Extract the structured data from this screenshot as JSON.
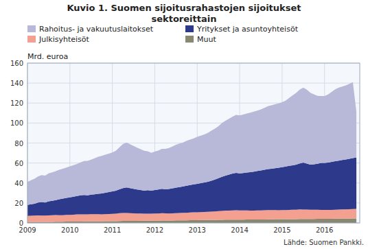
{
  "chart_data": {
    "type": "area",
    "stacked": true,
    "title": "Kuvio 1. Suomen sijoitusrahastojen sijoitukset\nsektoreittain",
    "ylabel": "Mrd. euroa",
    "source": "Lähde: Suomen Pankki.",
    "grid": true,
    "legend": "top",
    "xlim": [
      2009.0,
      2016.83
    ],
    "xticks": [
      2009,
      2010,
      2011,
      2012,
      2013,
      2014,
      2015,
      2016
    ],
    "ylim": [
      0,
      160
    ],
    "yticks": [
      0,
      20,
      40,
      60,
      80,
      100,
      120,
      140,
      160
    ],
    "x": [
      2009.0,
      2009.083,
      2009.167,
      2009.25,
      2009.333,
      2009.417,
      2009.5,
      2009.583,
      2009.667,
      2009.75,
      2009.833,
      2009.917,
      2010.0,
      2010.083,
      2010.167,
      2010.25,
      2010.333,
      2010.417,
      2010.5,
      2010.583,
      2010.667,
      2010.75,
      2010.833,
      2010.917,
      2011.0,
      2011.083,
      2011.167,
      2011.25,
      2011.333,
      2011.417,
      2011.5,
      2011.583,
      2011.667,
      2011.75,
      2011.833,
      2011.917,
      2012.0,
      2012.083,
      2012.167,
      2012.25,
      2012.333,
      2012.417,
      2012.5,
      2012.583,
      2012.667,
      2012.75,
      2012.833,
      2012.917,
      2013.0,
      2013.083,
      2013.167,
      2013.25,
      2013.333,
      2013.417,
      2013.5,
      2013.583,
      2013.667,
      2013.75,
      2013.833,
      2013.917,
      2014.0,
      2014.083,
      2014.167,
      2014.25,
      2014.333,
      2014.417,
      2014.5,
      2014.583,
      2014.667,
      2014.75,
      2014.833,
      2014.917,
      2015.0,
      2015.083,
      2015.167,
      2015.25,
      2015.333,
      2015.417,
      2015.5,
      2015.583,
      2015.667,
      2015.75,
      2015.833,
      2015.917,
      2016.0,
      2016.083,
      2016.167,
      2016.25,
      2016.333,
      2016.417,
      2016.5,
      2016.583,
      2016.667,
      2016.75
    ],
    "series": [
      {
        "name": "Rahoitus- ja vakuutuslaitokset",
        "color": "#b8b8d8",
        "values": [
          23.0,
          24.0,
          25.0,
          26.0,
          27.0,
          27.0,
          28.0,
          28.5,
          29.0,
          29.5,
          30.0,
          30.5,
          31.0,
          31.5,
          32.0,
          33.0,
          34.0,
          34.5,
          35.0,
          36.0,
          37.0,
          37.5,
          38.0,
          38.5,
          39.0,
          40.0,
          42.0,
          44.0,
          45.0,
          44.0,
          43.0,
          42.0,
          41.0,
          40.0,
          39.0,
          38.0,
          38.5,
          39.0,
          40.0,
          40.5,
          41.0,
          42.0,
          43.0,
          43.5,
          44.0,
          45.0,
          45.5,
          46.0,
          47.0,
          47.5,
          48.0,
          49.0,
          50.0,
          51.0,
          52.0,
          54.0,
          55.0,
          56.0,
          57.0,
          58.0,
          58.0,
          58.5,
          59.0,
          59.5,
          60.0,
          60.5,
          61.0,
          62.0,
          63.0,
          63.5,
          64.0,
          64.5,
          65.0,
          66.0,
          68.0,
          70.0,
          72.0,
          74.0,
          75.0,
          74.0,
          72.0,
          70.0,
          68.0,
          67.0,
          67.0,
          68.0,
          70.0,
          72.0,
          73.0,
          73.5,
          74.0,
          75.0,
          76.0,
          46.0
        ]
      },
      {
        "name": "Yritykset ja asuntoyhteisöt",
        "color": "#2d3a8c",
        "values": [
          11.0,
          11.5,
          12.0,
          13.0,
          13.5,
          13.0,
          14.0,
          14.5,
          15.0,
          16.0,
          16.5,
          17.0,
          17.5,
          18.0,
          18.5,
          19.0,
          19.5,
          19.0,
          19.5,
          20.0,
          20.5,
          21.0,
          21.5,
          22.0,
          22.5,
          23.0,
          24.0,
          25.0,
          25.5,
          25.0,
          24.5,
          24.0,
          23.5,
          23.0,
          23.5,
          23.0,
          23.5,
          24.0,
          24.5,
          24.0,
          24.5,
          25.0,
          25.5,
          26.0,
          26.5,
          27.0,
          27.5,
          28.0,
          28.5,
          29.0,
          29.5,
          30.0,
          31.0,
          32.0,
          33.0,
          34.0,
          35.0,
          36.0,
          37.0,
          37.5,
          37.0,
          37.5,
          38.0,
          38.5,
          39.0,
          39.5,
          40.0,
          40.5,
          41.0,
          41.5,
          42.0,
          42.5,
          43.0,
          43.5,
          44.0,
          44.5,
          45.0,
          46.0,
          47.0,
          46.0,
          45.0,
          45.5,
          46.0,
          47.0,
          47.0,
          47.5,
          48.0,
          48.5,
          49.0,
          49.5,
          50.0,
          50.5,
          51.0,
          51.5
        ]
      },
      {
        "name": "Julkisyhteisöt",
        "color": "#f4a090",
        "values": [
          6.0,
          6.2,
          6.3,
          6.5,
          6.4,
          6.3,
          6.5,
          6.6,
          6.7,
          6.5,
          6.6,
          6.7,
          6.8,
          7.0,
          7.1,
          7.2,
          7.0,
          7.1,
          7.3,
          7.2,
          7.1,
          7.0,
          7.1,
          7.2,
          7.3,
          7.5,
          7.8,
          7.9,
          8.0,
          7.8,
          7.5,
          7.3,
          7.2,
          7.0,
          7.1,
          7.0,
          7.1,
          7.2,
          7.3,
          7.2,
          7.1,
          7.2,
          7.3,
          7.4,
          7.5,
          7.6,
          7.7,
          7.8,
          7.9,
          8.0,
          8.1,
          8.2,
          8.3,
          8.5,
          8.7,
          9.0,
          9.1,
          9.2,
          9.3,
          9.4,
          9.3,
          9.2,
          9.1,
          9.0,
          8.9,
          9.0,
          9.1,
          9.2,
          9.3,
          9.2,
          9.1,
          9.0,
          9.1,
          9.2,
          9.3,
          9.4,
          9.5,
          9.6,
          9.5,
          9.4,
          9.3,
          9.2,
          9.1,
          9.0,
          8.9,
          8.8,
          8.9,
          9.0,
          9.1,
          9.2,
          9.3,
          9.4,
          9.5,
          9.6
        ]
      },
      {
        "name": "Muut",
        "color": "#888870",
        "values": [
          1.0,
          1.0,
          1.0,
          1.0,
          1.0,
          1.1,
          1.1,
          1.1,
          1.2,
          1.2,
          1.2,
          1.3,
          1.3,
          1.3,
          1.4,
          1.4,
          1.5,
          1.5,
          1.5,
          1.5,
          1.6,
          1.6,
          1.7,
          1.7,
          1.8,
          1.8,
          1.9,
          2.0,
          2.0,
          2.0,
          2.1,
          2.1,
          2.2,
          2.2,
          2.2,
          2.3,
          2.3,
          2.3,
          2.4,
          2.4,
          2.4,
          2.4,
          2.5,
          2.5,
          2.6,
          2.6,
          2.7,
          2.8,
          2.8,
          2.9,
          2.9,
          3.0,
          3.0,
          3.0,
          3.1,
          3.1,
          3.2,
          3.2,
          3.2,
          3.3,
          3.3,
          3.3,
          3.4,
          3.4,
          3.5,
          3.5,
          3.5,
          3.5,
          3.6,
          3.6,
          3.7,
          3.7,
          3.7,
          3.7,
          3.8,
          3.8,
          3.8,
          3.9,
          3.9,
          4.0,
          4.0,
          4.0,
          4.1,
          4.1,
          4.2,
          4.2,
          4.2,
          4.3,
          4.3,
          4.3,
          4.3,
          4.3,
          4.4,
          4.4
        ]
      }
    ]
  }
}
